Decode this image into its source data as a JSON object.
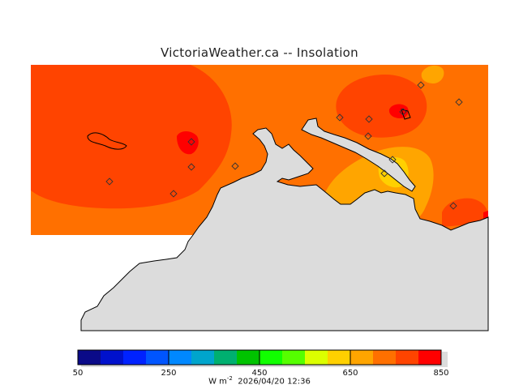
{
  "title": "VictoriaWeather.ca -- Insolation",
  "colorbar": {
    "colors": [
      "#0a0a88",
      "#0011cc",
      "#0022ff",
      "#0055ff",
      "#0088ff",
      "#00a5cc",
      "#00b070",
      "#00c300",
      "#11ff00",
      "#55ff00",
      "#dcff00",
      "#ffd000",
      "#ffa500",
      "#ff7000",
      "#ff4400",
      "#ff0000"
    ],
    "tick_labels": [
      "50",
      "250",
      "450",
      "650",
      "850"
    ]
  },
  "footer": {
    "unit_prefix": "W m",
    "unit_exp": "-2",
    "timestamp": "2026/04/20 12:36"
  },
  "map_colors": {
    "base": "#ff7000",
    "high": "#ff4400",
    "peak": "#ff0000",
    "mid": "#ffa500",
    "low": "#ffd000",
    "land": "#dcdcdc"
  },
  "station_count": 14
}
